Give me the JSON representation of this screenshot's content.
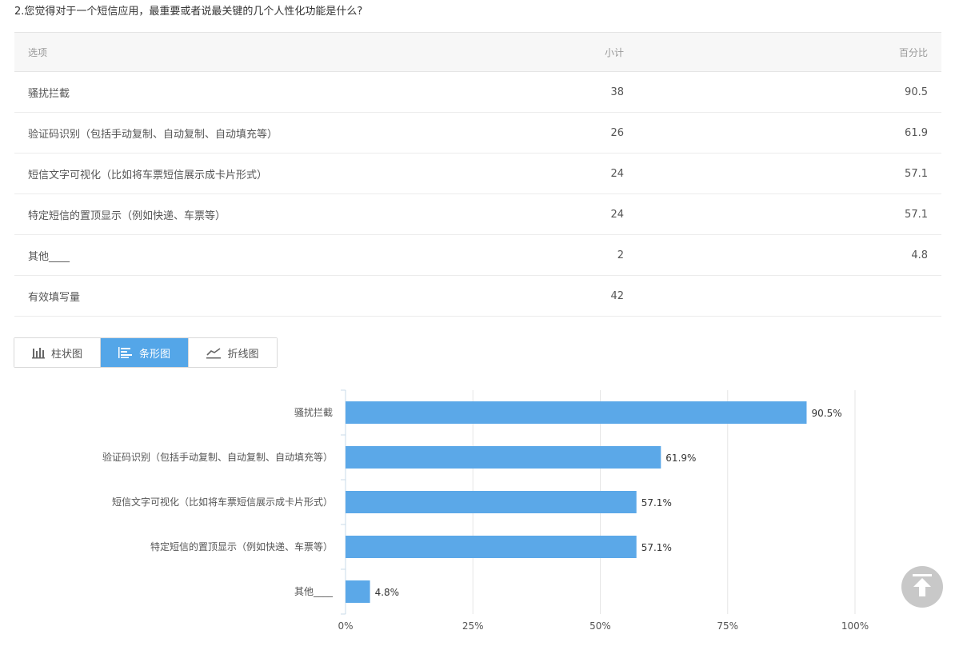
{
  "question": {
    "title": "2.您觉得对于一个短信应用，最重要或者说最关键的几个人性化功能是什么?"
  },
  "table": {
    "headers": {
      "option": "选项",
      "count": "小计",
      "percent": "百分比"
    },
    "rows": [
      {
        "option": "骚扰拦截",
        "count": "38",
        "percent": "90.5"
      },
      {
        "option": "验证码识别（包括手动复制、自动复制、自动填充等）",
        "count": "26",
        "percent": "61.9"
      },
      {
        "option": "短信文字可视化（比如将车票短信展示成卡片形式）",
        "count": "24",
        "percent": "57.1"
      },
      {
        "option": "特定短信的置顶显示（例如快递、车票等）",
        "count": "24",
        "percent": "57.1"
      },
      {
        "option": "其他____",
        "count": "2",
        "percent": "4.8"
      }
    ],
    "total": {
      "label": "有效填写量",
      "count": "42",
      "percent": ""
    }
  },
  "tabs": [
    {
      "label": "柱状图",
      "icon": "bar-chart-icon",
      "active": false
    },
    {
      "label": "条形图",
      "icon": "horizontal-bar-icon",
      "active": true
    },
    {
      "label": "折线图",
      "icon": "line-chart-icon",
      "active": false
    }
  ],
  "colors": {
    "bar": "#5ba8e8",
    "active_tab": "#54a6e8",
    "grid": "#e6e6e6",
    "axis": "#c9dbe9"
  },
  "chart_data": {
    "type": "bar",
    "orientation": "horizontal",
    "categories": [
      "骚扰拦截",
      "验证码识别（包括手动复制、自动复制、自动填充等）",
      "短信文字可视化（比如将车票短信展示成卡片形式）",
      "特定短信的置顶显示（例如快递、车票等）",
      "其他____"
    ],
    "values": [
      90.5,
      61.9,
      57.1,
      57.1,
      4.8
    ],
    "data_labels": [
      "90.5%",
      "61.9%",
      "57.1%",
      "57.1%",
      "4.8%"
    ],
    "x_ticks": [
      "0%",
      "25%",
      "50%",
      "75%",
      "100%"
    ],
    "xlim": [
      0,
      100
    ],
    "grid": true
  }
}
